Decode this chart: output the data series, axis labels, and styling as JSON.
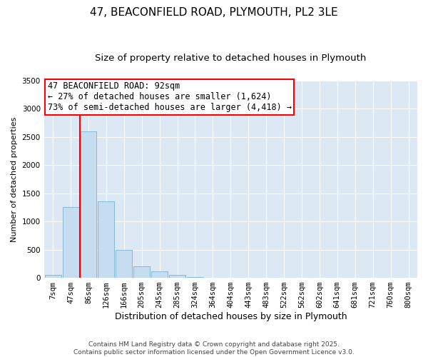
{
  "title": "47, BEACONFIELD ROAD, PLYMOUTH, PL2 3LE",
  "subtitle": "Size of property relative to detached houses in Plymouth",
  "xlabel": "Distribution of detached houses by size in Plymouth",
  "ylabel": "Number of detached properties",
  "bar_color": "#c5ddef",
  "bar_edgecolor": "#7ab0d4",
  "bg_color": "#dce9f5",
  "categories": [
    "7sqm",
    "47sqm",
    "86sqm",
    "126sqm",
    "166sqm",
    "205sqm",
    "245sqm",
    "285sqm",
    "324sqm",
    "364sqm",
    "404sqm",
    "443sqm",
    "483sqm",
    "522sqm",
    "562sqm",
    "602sqm",
    "641sqm",
    "681sqm",
    "721sqm",
    "760sqm",
    "800sqm"
  ],
  "values": [
    50,
    1250,
    2600,
    1360,
    500,
    200,
    110,
    50,
    15,
    5,
    2,
    1,
    0,
    0,
    0,
    0,
    0,
    0,
    0,
    0,
    0
  ],
  "ylim": [
    0,
    3500
  ],
  "vline_bar_index": 2,
  "annotation_title": "47 BEACONFIELD ROAD: 92sqm",
  "annotation_line1": "← 27% of detached houses are smaller (1,624)",
  "annotation_line2": "73% of semi-detached houses are larger (4,418) →",
  "footer1": "Contains HM Land Registry data © Crown copyright and database right 2025.",
  "footer2": "Contains public sector information licensed under the Open Government Licence v3.0.",
  "title_fontsize": 11,
  "subtitle_fontsize": 9.5,
  "xlabel_fontsize": 9,
  "ylabel_fontsize": 8,
  "tick_fontsize": 7.5,
  "annotation_fontsize": 8.5,
  "footer_fontsize": 6.5
}
